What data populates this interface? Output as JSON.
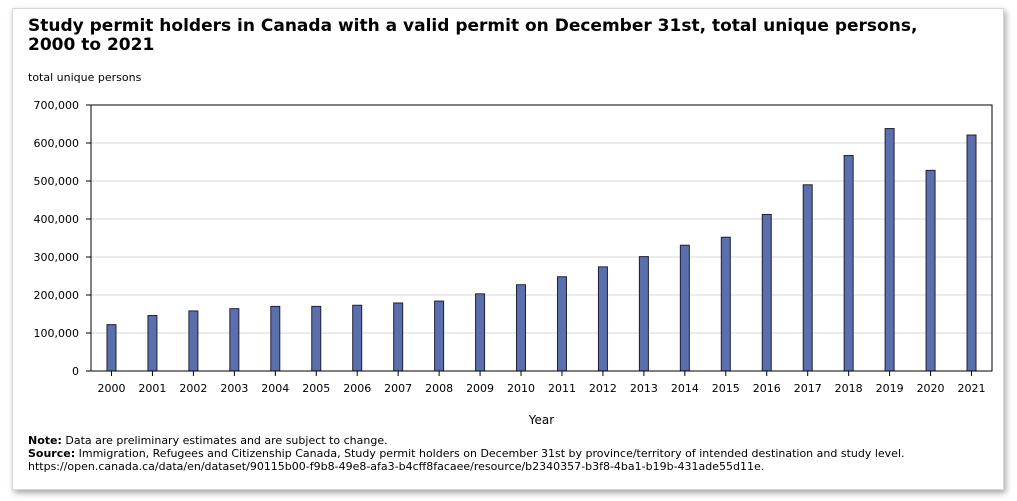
{
  "chart_data": {
    "type": "bar",
    "title": "Study permit holders in Canada with a valid permit on December 31st, total unique persons, 2000 to 2021",
    "ylabel": "total unique persons",
    "xlabel": "Year",
    "ylim": [
      0,
      700000
    ],
    "yticks": [
      0,
      100000,
      200000,
      300000,
      400000,
      500000,
      600000,
      700000
    ],
    "ytick_labels": [
      "0",
      "100,000",
      "200,000",
      "300,000",
      "400,000",
      "500,000",
      "600,000",
      "700,000"
    ],
    "grid": true,
    "categories": [
      "2000",
      "2001",
      "2002",
      "2003",
      "2004",
      "2005",
      "2006",
      "2007",
      "2008",
      "2009",
      "2010",
      "2011",
      "2012",
      "2013",
      "2014",
      "2015",
      "2016",
      "2017",
      "2018",
      "2019",
      "2020",
      "2021"
    ],
    "values": [
      122000,
      146000,
      158000,
      164000,
      170000,
      170000,
      173000,
      179000,
      184000,
      203000,
      227000,
      248000,
      274000,
      301000,
      331000,
      352000,
      412000,
      490000,
      567000,
      638000,
      528000,
      621000
    ],
    "bar_color": "#5b6fad"
  },
  "notes": {
    "note_label": "Note:",
    "note_text": " Data are preliminary estimates and are subject to change.",
    "source_label": "Source:",
    "source_text": " Immigration, Refugees and Citizenship Canada, Study permit holders on December 31st by province/territory of intended destination and study level. https://open.canada.ca/data/en/dataset/90115b00-f9b8-49e8-afa3-b4cff8facaee/resource/b2340357-b3f8-4ba1-b19b-431ade55d11e."
  }
}
